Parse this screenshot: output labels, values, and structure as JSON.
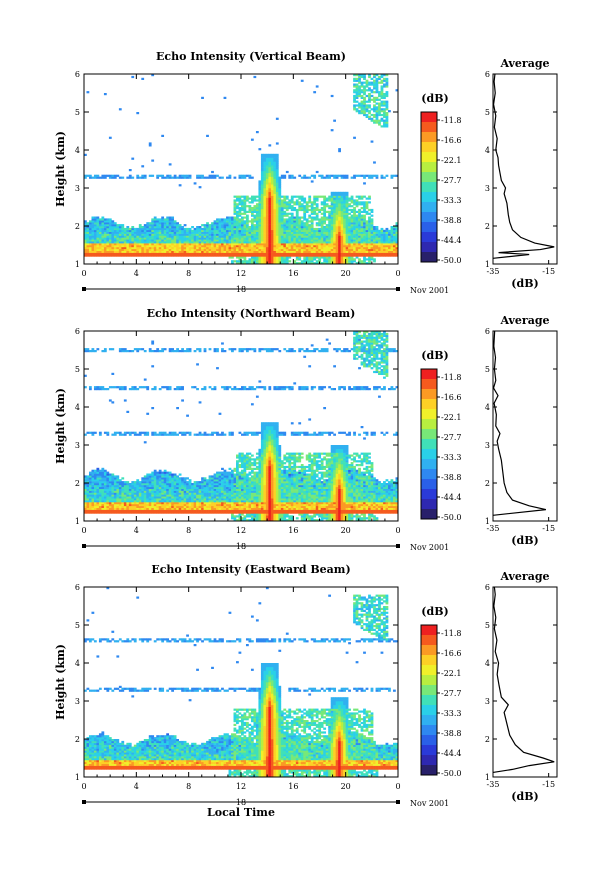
{
  "figure": {
    "date_label": "Nov 2001",
    "xlabel_bottom": "Local Time"
  },
  "colorbar": {
    "unit": "(dB)",
    "ticks": [
      "-11.8",
      "-16.6",
      "-22.1",
      "-27.7",
      "-33.3",
      "-38.8",
      "-44.4",
      "-50.0"
    ],
    "colors": [
      "#ee2020",
      "#f55a1e",
      "#fb9a24",
      "#fdd026",
      "#f0f02a",
      "#b8ee40",
      "#78e878",
      "#40e0b8",
      "#2ad0e8",
      "#30b0f0",
      "#2e88f0",
      "#2a60e8",
      "#2a3ad8",
      "#2e28b0",
      "#28206a"
    ]
  },
  "chart_data": [
    {
      "type": "heatmap",
      "title": "Echo Intensity (Vertical Beam)",
      "ylabel": "Height (km)",
      "xlabel": "",
      "x_ticks": [
        "0",
        "4",
        "8",
        "12",
        "16",
        "20",
        "0"
      ],
      "y_ticks": [
        "1",
        "2",
        "3",
        "4",
        "5",
        "6"
      ],
      "xlim": [
        0,
        24
      ],
      "ylim": [
        1,
        6
      ],
      "day_label": "18",
      "z_unit": "dB",
      "z_range": [
        -50.0,
        -11.8
      ],
      "features": {
        "boundary_layer_top_km": 1.55,
        "clutter_band_km": [
          1.5,
          2.1
        ],
        "thin_layers_km": [
          3.3
        ],
        "convective_towers": [
          {
            "time_h": 14.2,
            "top_km": 3.9
          },
          {
            "time_h": 19.5,
            "top_km": 2.9
          }
        ],
        "upper_cloud": {
          "time_h": [
            20.5,
            23.3
          ],
          "height_km": [
            4.5,
            6.0
          ]
        }
      },
      "profile": {
        "title": "Average",
        "xlabel": "(dB)",
        "x_ticks": [
          "-35",
          "-15"
        ],
        "xlim": [
          -35,
          -12
        ],
        "ylim": [
          1,
          6
        ],
        "y_ticks": [
          "1",
          "2",
          "3",
          "4",
          "5",
          "6"
        ],
        "height_km": [
          1.15,
          1.25,
          1.3,
          1.38,
          1.45,
          1.55,
          1.7,
          1.9,
          2.1,
          2.3,
          2.6,
          2.85,
          3.0,
          3.2,
          3.4,
          3.6,
          3.8,
          4.0,
          4.3,
          4.6,
          4.9,
          5.2,
          5.5,
          5.8,
          6.0
        ],
        "values_db": [
          -35,
          -22,
          -33,
          -18,
          -13,
          -20,
          -25,
          -28,
          -29,
          -29.5,
          -30,
          -31,
          -30.5,
          -32,
          -32.5,
          -33,
          -33.2,
          -34,
          -33.5,
          -34.5,
          -34,
          -34.8,
          -34.2,
          -34.6,
          -34.3
        ]
      }
    },
    {
      "type": "heatmap",
      "title": "Echo Intensity (Northward Beam)",
      "ylabel": "Height (km)",
      "xlabel": "",
      "x_ticks": [
        "0",
        "4",
        "8",
        "12",
        "16",
        "20",
        "0"
      ],
      "y_ticks": [
        "1",
        "2",
        "3",
        "4",
        "5",
        "6"
      ],
      "xlim": [
        0,
        24
      ],
      "ylim": [
        1,
        6
      ],
      "day_label": "18",
      "z_unit": "dB",
      "z_range": [
        -50.0,
        -11.8
      ],
      "features": {
        "boundary_layer_top_km": 1.5,
        "clutter_band_km": [
          1.4,
          2.2
        ],
        "thin_layers_km": [
          3.3,
          4.5,
          5.5
        ],
        "convective_towers": [
          {
            "time_h": 14.2,
            "top_km": 3.6
          },
          {
            "time_h": 19.5,
            "top_km": 3.0
          }
        ],
        "upper_cloud": {
          "time_h": [
            20.5,
            23.3
          ],
          "height_km": [
            4.7,
            6.0
          ]
        }
      },
      "profile": {
        "title": "Average",
        "xlabel": "(dB)",
        "x_ticks": [
          "-35",
          "-15"
        ],
        "xlim": [
          -35,
          -12
        ],
        "ylim": [
          1,
          6
        ],
        "y_ticks": [
          "1",
          "2",
          "3",
          "4",
          "5",
          "6"
        ],
        "height_km": [
          1.15,
          1.3,
          1.4,
          1.55,
          1.75,
          2.0,
          2.3,
          2.6,
          2.9,
          3.1,
          3.3,
          3.5,
          3.8,
          4.1,
          4.3,
          4.5,
          4.7,
          5.0,
          5.3,
          5.6,
          6.0
        ],
        "values_db": [
          -35,
          -16,
          -22,
          -28,
          -30,
          -31,
          -31.5,
          -32,
          -33,
          -33.5,
          -32.5,
          -34,
          -33.8,
          -34.6,
          -33.2,
          -34.8,
          -34,
          -34.5,
          -34.1,
          -34.7,
          -34.4
        ]
      }
    },
    {
      "type": "heatmap",
      "title": "Echo Intensity (Eastward Beam)",
      "ylabel": "Height (km)",
      "xlabel": "Local Time",
      "x_ticks": [
        "0",
        "4",
        "8",
        "12",
        "16",
        "20",
        "0"
      ],
      "y_ticks": [
        "1",
        "2",
        "3",
        "4",
        "5",
        "6"
      ],
      "xlim": [
        0,
        24
      ],
      "ylim": [
        1,
        6
      ],
      "day_label": "18",
      "z_unit": "dB",
      "z_range": [
        -50.0,
        -11.8
      ],
      "features": {
        "boundary_layer_top_km": 1.45,
        "clutter_band_km": [
          1.35,
          2.0
        ],
        "thin_layers_km": [
          3.3,
          4.6
        ],
        "convective_towers": [
          {
            "time_h": 14.2,
            "top_km": 4.0
          },
          {
            "time_h": 19.5,
            "top_km": 3.1
          }
        ],
        "upper_cloud": {
          "time_h": [
            20.5,
            23.3
          ],
          "height_km": [
            4.5,
            5.8
          ]
        }
      },
      "profile": {
        "title": "Average",
        "xlabel": "(dB)",
        "x_ticks": [
          "-35",
          "-15"
        ],
        "xlim": [
          -35,
          -12
        ],
        "ylim": [
          1,
          6
        ],
        "y_ticks": [
          "1",
          "2",
          "3",
          "4",
          "5",
          "6"
        ],
        "height_km": [
          1.12,
          1.2,
          1.3,
          1.4,
          1.5,
          1.65,
          1.85,
          2.1,
          2.4,
          2.7,
          2.9,
          3.1,
          3.4,
          3.7,
          4.0,
          4.3,
          4.6,
          4.9,
          5.2,
          5.5,
          5.8,
          6.0
        ],
        "values_db": [
          -35,
          -28,
          -22,
          -13,
          -17,
          -24,
          -27,
          -29,
          -30,
          -31,
          -29.5,
          -32,
          -32.8,
          -33.5,
          -33,
          -34.2,
          -33.6,
          -34.5,
          -34,
          -34.7,
          -34.2,
          -34.5
        ]
      }
    }
  ]
}
